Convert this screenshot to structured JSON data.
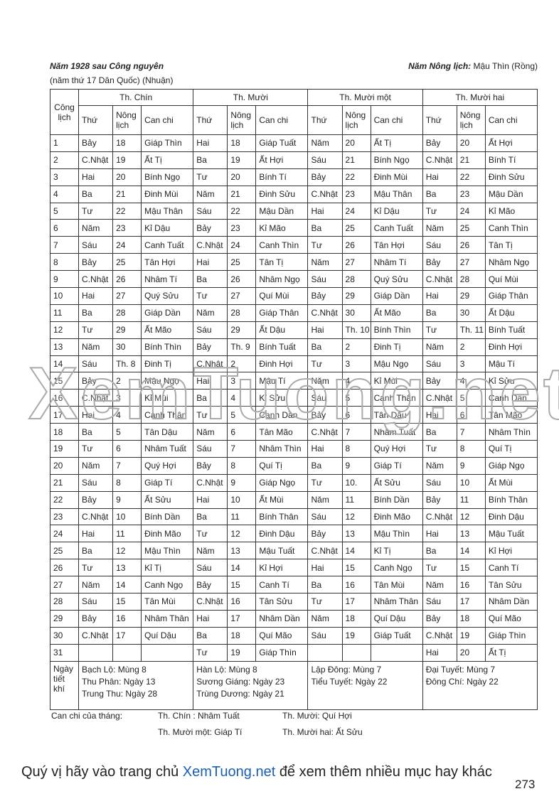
{
  "header": {
    "left_title": "Năm 1928 sau Công nguyên",
    "left_subtitle": "(năm thứ 17 Dân Quốc) (Nhuận)",
    "right_label": "Năm Nông lịch:",
    "right_value": "Mậu Thìn (Rồng)"
  },
  "table": {
    "day_header": "Công lịch",
    "months": [
      "Th. Chín",
      "Th. Mười",
      "Th. Mười một",
      "Th. Mười hai"
    ],
    "sub_headers": [
      "Thứ",
      "Nông lịch",
      "Can chi"
    ],
    "rows": [
      [
        "1",
        "Bảy",
        "18",
        "Giáp Thìn",
        "Hai",
        "18",
        "Giáp Tuất",
        "Năm",
        "20",
        "Ất Tị",
        "Bảy",
        "20",
        "Ất Hợi"
      ],
      [
        "2",
        "C.Nhật",
        "19",
        "Ất Tị",
        "Ba",
        "19",
        "Ất Hợi",
        "Sáu",
        "21",
        "Bính Ngọ",
        "C.Nhật",
        "21",
        "Bính Tí"
      ],
      [
        "3",
        "Hai",
        "20",
        "Bính Ngọ",
        "Tư",
        "20",
        "Bính Tí",
        "Bảy",
        "22",
        "Đinh Mùi",
        "Hai",
        "22",
        "Đinh Sửu"
      ],
      [
        "4",
        "Ba",
        "21",
        "Đinh Mùi",
        "Năm",
        "21",
        "Đinh Sửu",
        "C.Nhật",
        "23",
        "Mậu Thân",
        "Ba",
        "23",
        "Mậu Dần"
      ],
      [
        "5",
        "Tư",
        "22",
        "Mậu Thân",
        "Sáu",
        "22",
        "Mậu Dần",
        "Hai",
        "24",
        "Kỉ Dậu",
        "Tư",
        "24",
        "Kỉ Mão"
      ],
      [
        "6",
        "Năm",
        "23",
        "Kỉ Dậu",
        "Bảy",
        "23",
        "Kỉ Mão",
        "Ba",
        "25",
        "Canh Tuất",
        "Năm",
        "25",
        "Canh Thìn"
      ],
      [
        "7",
        "Sáu",
        "24",
        "Canh Tuất",
        "C.Nhật",
        "24",
        "Canh Thìn",
        "Tư",
        "26",
        "Tân Hợi",
        "Sáu",
        "26",
        "Tân Tị"
      ],
      [
        "8",
        "Bảy",
        "25",
        "Tân Hợi",
        "Hai",
        "25",
        "Tân Tị",
        "Năm",
        "27",
        "Nhâm Tí",
        "Bảy",
        "27",
        "Nhâm Ngọ"
      ],
      [
        "9",
        "C.Nhật",
        "26",
        "Nhâm Tí",
        "Ba",
        "26",
        "Nhâm Ngọ",
        "Sáu",
        "28",
        "Quý Sửu",
        "C.Nhật",
        "28",
        "Quí Mùi"
      ],
      [
        "10",
        "Hai",
        "27",
        "Quý Sửu",
        "Tư",
        "27",
        "Quí Mùi",
        "Bảy",
        "29",
        "Giáp Dần",
        "Hai",
        "29",
        "Giáp Thân"
      ],
      [
        "11",
        "Ba",
        "28",
        "Giáp Dần",
        "Năm",
        "28",
        "Giáp Thân",
        "C.Nhật",
        "30",
        "Ất Mão",
        "Ba",
        "30",
        "Ất Dậu"
      ],
      [
        "12",
        "Tư",
        "29",
        "Ất Mão",
        "Sáu",
        "29",
        "Ất Dậu",
        "Hai",
        "Th. 10",
        "Bính Thìn",
        "Tư",
        "Th. 11",
        "Bính Tuất"
      ],
      [
        "13",
        "Năm",
        "30",
        "Bính Thìn",
        "Bảy",
        "Th. 9",
        "Bính Tuất",
        "Ba",
        "2",
        "Đinh Tị",
        "Năm",
        "2",
        "Đinh Hợi"
      ],
      [
        "14",
        "Sáu",
        "Th. 8",
        "Đinh Tị",
        "C.Nhật",
        "2",
        "Đinh Hợi",
        "Tư",
        "3",
        "Mậu Ngọ",
        "Sáu",
        "3",
        "Mậu Tí"
      ],
      [
        "15",
        "Bảy",
        "2",
        "Mậu Ngọ",
        "Hai",
        "3",
        "Mậu Tí",
        "Năm",
        "4",
        "Kỉ Mùi",
        "Bảy",
        "4",
        "Kỉ Sửu"
      ],
      [
        "16",
        "C.Nhật",
        "3",
        "Kỉ Mùi",
        "Ba",
        "4",
        "Kỉ Sửu",
        "Sáu",
        "5",
        "Canh Thân",
        "C.Nhật",
        "5",
        "Canh Dần"
      ],
      [
        "17",
        "Hai",
        "4",
        "Canh Thân",
        "Tư",
        "5",
        "Canh Dần",
        "Bảy",
        "6",
        "Tân Dậu",
        "Hai",
        "6",
        "Tân Mão"
      ],
      [
        "18",
        "Ba",
        "5",
        "Tân Dậu",
        "Năm",
        "6",
        "Tân Mão",
        "C.Nhật",
        "7",
        "Nhâm Tuất",
        "Ba",
        "7",
        "Nhâm Thìn"
      ],
      [
        "19",
        "Tư",
        "6",
        "Nhâm Tuất",
        "Sáu",
        "7",
        "Nhâm Thìn",
        "Hai",
        "8",
        "Quý Hợi",
        "Tư",
        "8",
        "Quí Tị"
      ],
      [
        "20",
        "Năm",
        "7",
        "Quý Hợi",
        "Bảy",
        "8",
        "Quí Tị",
        "Ba",
        "9",
        "Giáp Tí",
        "Năm",
        "9",
        "Giáp Ngọ"
      ],
      [
        "21",
        "Sáu",
        "8",
        "Giáp Tí",
        "C.Nhật",
        "9",
        "Giáp Ngọ",
        "Tư",
        "10.",
        "Ất Sửu",
        "Sáu",
        "10",
        "Ất Mùi"
      ],
      [
        "22",
        "Bảy",
        "9",
        "Ất Sửu",
        "Hai",
        "10",
        "Ất Mùi",
        "Năm",
        "11",
        "Bính Dần",
        "Bảy",
        "11",
        "Bính Thân"
      ],
      [
        "23",
        "C.Nhật",
        "10",
        "Bính Dần",
        "Ba",
        "11",
        "Bính Thân",
        "Sáu",
        "12",
        "Đinh Mão",
        "C.Nhật",
        "12",
        "Đinh Dậu"
      ],
      [
        "24",
        "Hai",
        "11",
        "Đinh Mão",
        "Tư",
        "12",
        "Đinh Dậu",
        "Bảy",
        "13",
        "Mậu Thìn",
        "Hai",
        "13",
        "Mậu Tuất"
      ],
      [
        "25",
        "Ba",
        "12",
        "Mậu Thìn",
        "Năm",
        "13",
        "Mậu Tuất",
        "C.Nhật",
        "14",
        "Kỉ Tị",
        "Ba",
        "14",
        "Kỉ Hợi"
      ],
      [
        "26",
        "Tư",
        "13",
        "Kỉ Tị",
        "Sáu",
        "14",
        "Kỉ Hợi",
        "Hai",
        "15",
        "Canh Ngọ",
        "Tư",
        "15",
        "Canh Tí"
      ],
      [
        "27",
        "Năm",
        "14",
        "Canh Ngọ",
        "Bảy",
        "15",
        "Canh Tí",
        "Ba",
        "16",
        "Tân Mùi",
        "Năm",
        "16",
        "Tân Sửu"
      ],
      [
        "28",
        "Sáu",
        "15",
        "Tân Mùi",
        "C.Nhật",
        "16",
        "Tân Sửu",
        "Tư",
        "17",
        "Nhâm Thân",
        "Sáu",
        "17",
        "Nhâm Dần"
      ],
      [
        "29",
        "Bảy",
        "16",
        "Nhâm Thân",
        "Hai",
        "17",
        "Nhâm Dần",
        "Năm",
        "18",
        "Quí Dậu",
        "Bảy",
        "18",
        "Quí Mão"
      ],
      [
        "30",
        "C.Nhật",
        "17",
        "Quí Dậu",
        "Ba",
        "18",
        "Quí Mão",
        "Sáu",
        "19",
        "Giáp Tuất",
        "C.Nhật",
        "19",
        "Giáp Thìn"
      ],
      [
        "31",
        null,
        null,
        null,
        "Tư",
        "19",
        "Giáp Thìn",
        null,
        null,
        null,
        "Hai",
        "20",
        "Ất Tị"
      ]
    ],
    "solar_terms_label": "Ngày tiết khí",
    "solar_terms": [
      [
        "Bạch Lộ: Mùng 8",
        "Thu Phân: Ngày 13",
        "Trung Thu: Ngày 28"
      ],
      [
        "Hàn Lộ: Mùng 8",
        "Sương Giáng: Ngày 23",
        "Trùng Dương: Ngày 21"
      ],
      [
        "Lập Đông: Mùng 7",
        "Tiểu Tuyết: Ngày 22"
      ],
      [
        "Đại Tuyết: Mùng 7",
        "Đông Chí: Ngày 22"
      ]
    ]
  },
  "footer": {
    "label": "Can chi của tháng:",
    "months": [
      "Th. Chín : Nhâm Tuất",
      "Th. Mười: Quí Hợi",
      "Th. Mười một: Giáp Tí",
      "Th. Mười hai: Ất Sửu"
    ]
  },
  "watermark": "XemTuong.net",
  "banner": {
    "before": "Quý vị hãy vào trang chủ",
    "link": "XemTuong.net",
    "after": "để xem thêm nhiều mục hay khác"
  },
  "page_number": "273"
}
